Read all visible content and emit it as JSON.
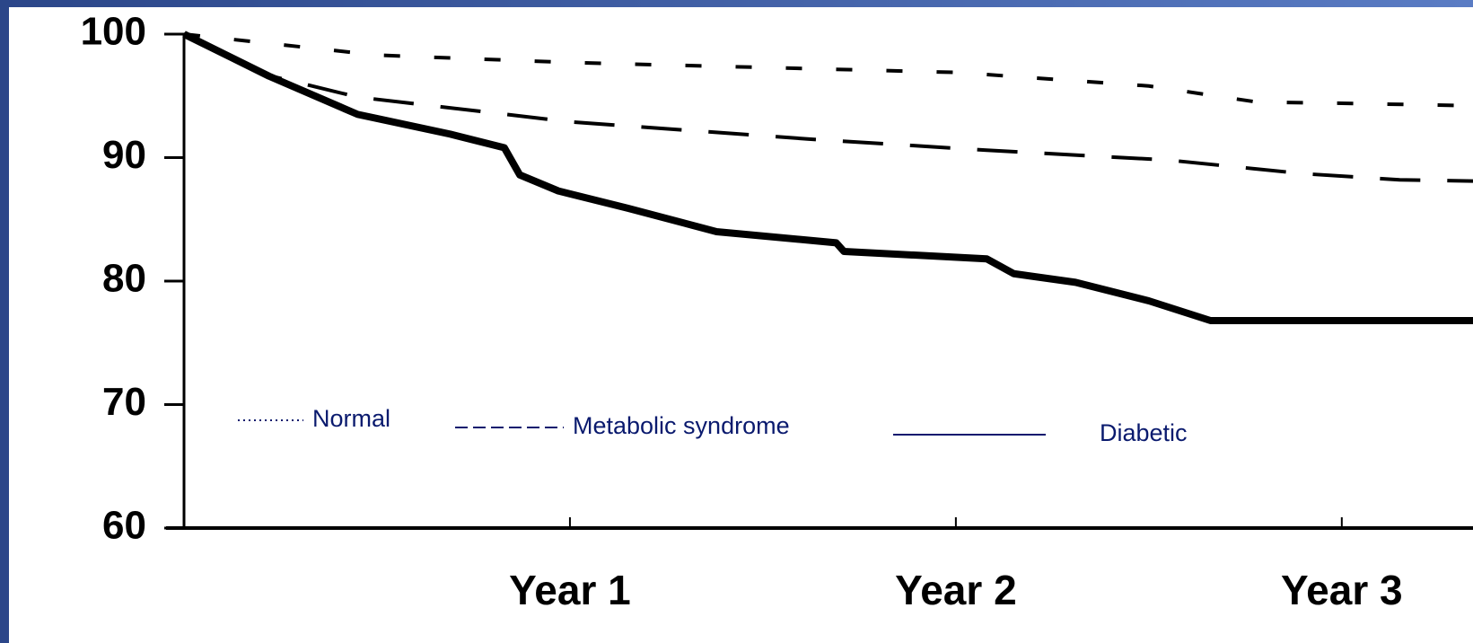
{
  "chart_data": {
    "type": "line",
    "x_is_years": true,
    "xlim": [
      0,
      3.34
    ],
    "xticks": [
      {
        "value": 1,
        "label": "Year 1"
      },
      {
        "value": 2,
        "label": "Year 2"
      },
      {
        "value": 3,
        "label": "Year 3"
      }
    ],
    "ylim": [
      60,
      100
    ],
    "yticks": [
      60,
      70,
      80,
      90,
      100
    ],
    "series": [
      {
        "name": "Normal",
        "color": "#000000",
        "x": [
          0,
          0.5,
          1,
          1.5,
          2,
          2.5,
          2.78,
          3,
          3.34
        ],
        "values": [
          100,
          98.3,
          97.7,
          97.3,
          96.9,
          95.8,
          94.5,
          94.4,
          94.2
        ]
      },
      {
        "name": "Metabolic syndrome",
        "color": "#000000",
        "x": [
          0,
          0.2,
          0.45,
          1,
          1.62,
          2.08,
          2.55,
          2.9,
          3.15,
          3.34
        ],
        "values": [
          100,
          96.8,
          94.9,
          92.9,
          91.5,
          90.6,
          89.8,
          88.7,
          88.2,
          88.1
        ]
      },
      {
        "name": "Diabetic",
        "color": "#000000",
        "x": [
          0,
          0.22,
          0.45,
          0.69,
          0.83,
          0.87,
          0.97,
          1.15,
          1.38,
          1.69,
          1.71,
          2.08,
          2.15,
          2.31,
          2.5,
          2.66,
          3.34
        ],
        "values": [
          100,
          96.6,
          93.5,
          91.9,
          90.8,
          88.6,
          87.3,
          85.9,
          84.0,
          83.1,
          82.4,
          81.8,
          80.6,
          79.9,
          78.4,
          76.8,
          76.8
        ]
      }
    ]
  }
}
